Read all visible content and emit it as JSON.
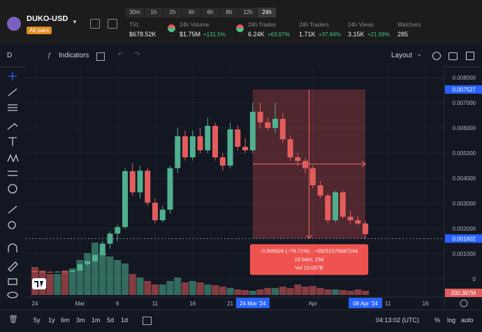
{
  "header": {
    "symbol": "DUKO-USD",
    "badge": "All pairs",
    "timeframes": [
      "30m",
      "1h",
      "2h",
      "4h",
      "6h",
      "8h",
      "12h",
      "24h"
    ],
    "stats": [
      {
        "label": "TVL",
        "value": "$678.52K"
      },
      {
        "label": "24h Volume",
        "value": "$1.75M",
        "change": "+131.5%"
      },
      {
        "label": "24h Trades",
        "value": "6.24K",
        "change": "+63.97%"
      },
      {
        "label": "24h Traders",
        "value": "1.71K",
        "change": "+37.94%"
      },
      {
        "label": "24h Views",
        "value": "3.15K",
        "change": "+21.69%"
      },
      {
        "label": "Watchers",
        "value": "285"
      }
    ]
  },
  "toolbar": {
    "interval": "D",
    "indicators": "Indicators",
    "layout": "Layout"
  },
  "chart_data": {
    "type": "candlestick",
    "x": [
      0,
      1,
      2,
      3,
      4,
      5,
      6,
      7,
      8,
      9,
      10,
      11,
      12,
      13,
      14,
      15,
      16,
      17,
      18,
      19,
      20,
      21,
      22,
      23,
      24,
      25,
      26,
      27,
      28,
      29,
      30,
      31,
      32,
      33,
      34,
      35,
      36,
      37,
      38,
      39,
      40,
      41,
      42,
      43,
      44
    ],
    "open": [
      0.0003,
      0.00029,
      0.00028,
      0.00027,
      0.00029,
      0.00028,
      0.00033,
      0.00058,
      0.0007,
      0.00095,
      0.0014,
      0.0018,
      0.00206,
      0.00428,
      0.00344,
      0.0043,
      0.00303,
      0.00233,
      0.00275,
      0.0044,
      0.00567,
      0.00483,
      0.00567,
      0.00511,
      0.00608,
      0.00483,
      0.0045,
      0.00594,
      0.00525,
      0.00511,
      0.00664,
      0.00622,
      0.006,
      0.00636,
      0.00555,
      0.00483,
      0.00469,
      0.0044,
      0.00372,
      0.00331,
      0.00233,
      0.00344,
      0.00247,
      0.00233,
      0.0022
    ],
    "high": [
      0.00032,
      0.00031,
      0.0003,
      0.0003,
      0.00031,
      0.00034,
      0.0006,
      0.00075,
      0.001,
      0.0015,
      0.0019,
      0.00215,
      0.0044,
      0.0046,
      0.0045,
      0.0044,
      0.0032,
      0.0029,
      0.0045,
      0.006,
      0.0059,
      0.0059,
      0.006,
      0.0064,
      0.0062,
      0.005,
      0.0062,
      0.0061,
      0.0056,
      0.007,
      0.007,
      0.0064,
      0.007,
      0.0066,
      0.0057,
      0.005,
      0.0048,
      0.0045,
      0.0039,
      0.0034,
      0.0035,
      0.0035,
      0.0027,
      0.0025,
      0.0023
    ],
    "low": [
      0.00028,
      0.00027,
      0.00026,
      0.00026,
      0.00027,
      0.00027,
      0.00032,
      0.0005,
      0.00065,
      0.0009,
      0.0012,
      0.0015,
      0.002,
      0.0033,
      0.0032,
      0.0029,
      0.0022,
      0.00225,
      0.0026,
      0.0042,
      0.0047,
      0.0047,
      0.005,
      0.005,
      0.0047,
      0.0043,
      0.0044,
      0.0051,
      0.005,
      0.005,
      0.006,
      0.0059,
      0.0058,
      0.0054,
      0.0047,
      0.0045,
      0.0042,
      0.0036,
      0.0032,
      0.0022,
      0.00225,
      0.0024,
      0.0022,
      0.00215,
      0.0016
    ],
    "close": [
      0.00029,
      0.00028,
      0.00027,
      0.00029,
      0.00028,
      0.00033,
      0.00058,
      0.0007,
      0.00095,
      0.0014,
      0.0018,
      0.00206,
      0.00428,
      0.00344,
      0.0043,
      0.00303,
      0.00233,
      0.00275,
      0.0044,
      0.00567,
      0.00483,
      0.00567,
      0.00511,
      0.00608,
      0.00483,
      0.0045,
      0.00594,
      0.00525,
      0.00511,
      0.00664,
      0.00622,
      0.006,
      0.00636,
      0.00555,
      0.00483,
      0.00469,
      0.0044,
      0.00372,
      0.00331,
      0.00233,
      0.00344,
      0.00247,
      0.00233,
      0.0022,
      0.00178
    ],
    "volume": [
      40,
      35,
      30,
      30,
      35,
      38,
      50,
      60,
      75,
      60,
      55,
      50,
      45,
      30,
      25,
      20,
      15,
      15,
      20,
      25,
      18,
      20,
      18,
      15,
      14,
      12,
      10,
      8,
      7,
      6,
      8,
      10,
      10,
      12,
      10,
      15,
      12,
      13,
      10,
      8,
      8,
      7,
      6,
      8,
      6
    ],
    "vlim": [
      0,
      150
    ],
    "up_color": "#4fb08f",
    "down_color": "#e35d5d",
    "xlim": [
      -1.3,
      54.5
    ],
    "xticks": [
      {
        "value": 0,
        "label": "24"
      },
      {
        "value": 6,
        "label": "Mar"
      },
      {
        "value": 11,
        "label": "6"
      },
      {
        "value": 16,
        "label": "11"
      },
      {
        "value": 21,
        "label": "16"
      },
      {
        "value": 26,
        "label": "21"
      },
      {
        "value": 37,
        "label": "Apr"
      },
      {
        "value": 47,
        "label": "11"
      },
      {
        "value": 52,
        "label": "16"
      }
    ],
    "xhighlights": [
      {
        "value": 29,
        "label": "24 Mar '24"
      },
      {
        "value": 44,
        "label": "08 Apr '24"
      }
    ],
    "ylim": [
      -0.000722,
      0.008444
    ],
    "yticks": [
      {
        "value": 0.008,
        "label": "0.008000"
      },
      {
        "value": 0.007,
        "label": "0.007000"
      },
      {
        "value": 0.006,
        "label": "0.006000"
      },
      {
        "value": 0.005,
        "label": "0.005000"
      },
      {
        "value": 0.004,
        "label": "0.004000"
      },
      {
        "value": 0.003,
        "label": "0.003000"
      },
      {
        "value": 0.002,
        "label": "0.002000"
      },
      {
        "value": 0.001,
        "label": "0.001000"
      },
      0
    ],
    "yhighlights": [
      {
        "value": 0.007527,
        "label": "0.007527"
      },
      {
        "value": 0.001602,
        "label": "0.001602"
      }
    ],
    "volume_label": "330.367M",
    "measure": {
      "start": 29,
      "end": 44,
      "top": 0.007527,
      "bottom": 0.001602,
      "lines": [
        "-0.005926 (−78.71%) , −59251570987244",
        "15 bars, 15d",
        "Vol 10.057B"
      ]
    }
  },
  "footer": {
    "ranges": [
      "5y",
      "1y",
      "6m",
      "3m",
      "1m",
      "5d",
      "1d"
    ],
    "clock": "04:13:02 (UTC)",
    "options": [
      "%",
      "log",
      "auto"
    ]
  }
}
